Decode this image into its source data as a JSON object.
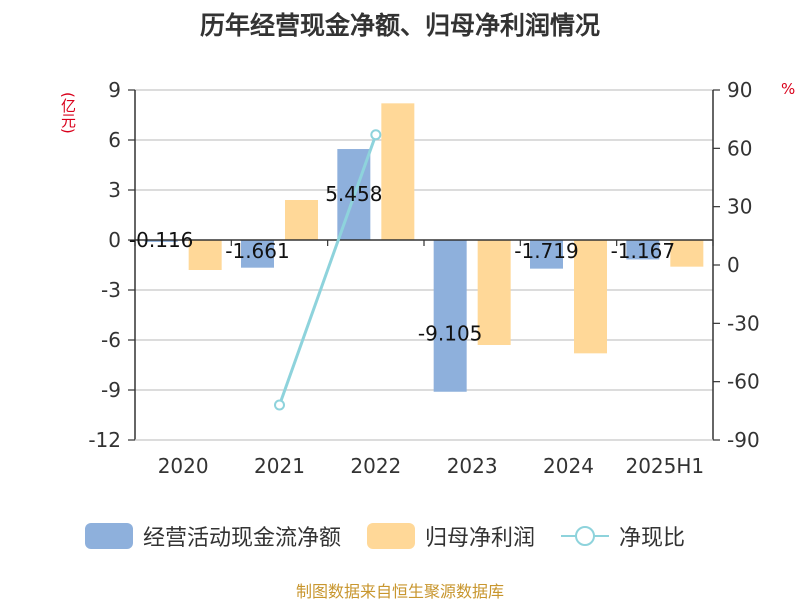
{
  "title": "历年经营现金净额、归母净利润情况",
  "unit_left": "(亿元)",
  "unit_right": "%",
  "source": "制图数据来自恒生聚源数据库",
  "colors": {
    "cash": "#8eb0dc",
    "profit": "#ffd898",
    "ratio": "#8ed3dc",
    "unit": "#d9001b",
    "source": "#c8962e"
  },
  "chart_data": {
    "type": "bar",
    "categories": [
      "2020",
      "2021",
      "2022",
      "2023",
      "2024",
      "2025H1"
    ],
    "series": [
      {
        "name": "经营活动现金流净额",
        "type": "bar",
        "axis": "left",
        "values": [
          -0.116,
          -1.661,
          5.458,
          -9.105,
          -1.719,
          -1.167
        ],
        "labels": [
          "-0.116",
          "-1.661",
          "5.458",
          "-9.105",
          "-1.719",
          "-1.167"
        ]
      },
      {
        "name": "归母净利润",
        "type": "bar",
        "axis": "left",
        "values": [
          -1.8,
          2.4,
          8.2,
          -6.3,
          -6.8,
          -1.6
        ]
      },
      {
        "name": "净现比",
        "type": "line",
        "axis": "right",
        "values": [
          null,
          -72,
          67,
          null,
          null,
          null
        ]
      }
    ],
    "yleft": {
      "min": -12,
      "max": 9,
      "ticks": [
        "9",
        "6",
        "3",
        "0",
        "-3",
        "-6",
        "-9",
        "-12"
      ]
    },
    "yright": {
      "min": -90,
      "max": 90,
      "ticks": [
        "90",
        "60",
        "30",
        "0",
        "-30",
        "-60",
        "-90"
      ]
    },
    "grid": true,
    "legend_position": "bottom"
  }
}
